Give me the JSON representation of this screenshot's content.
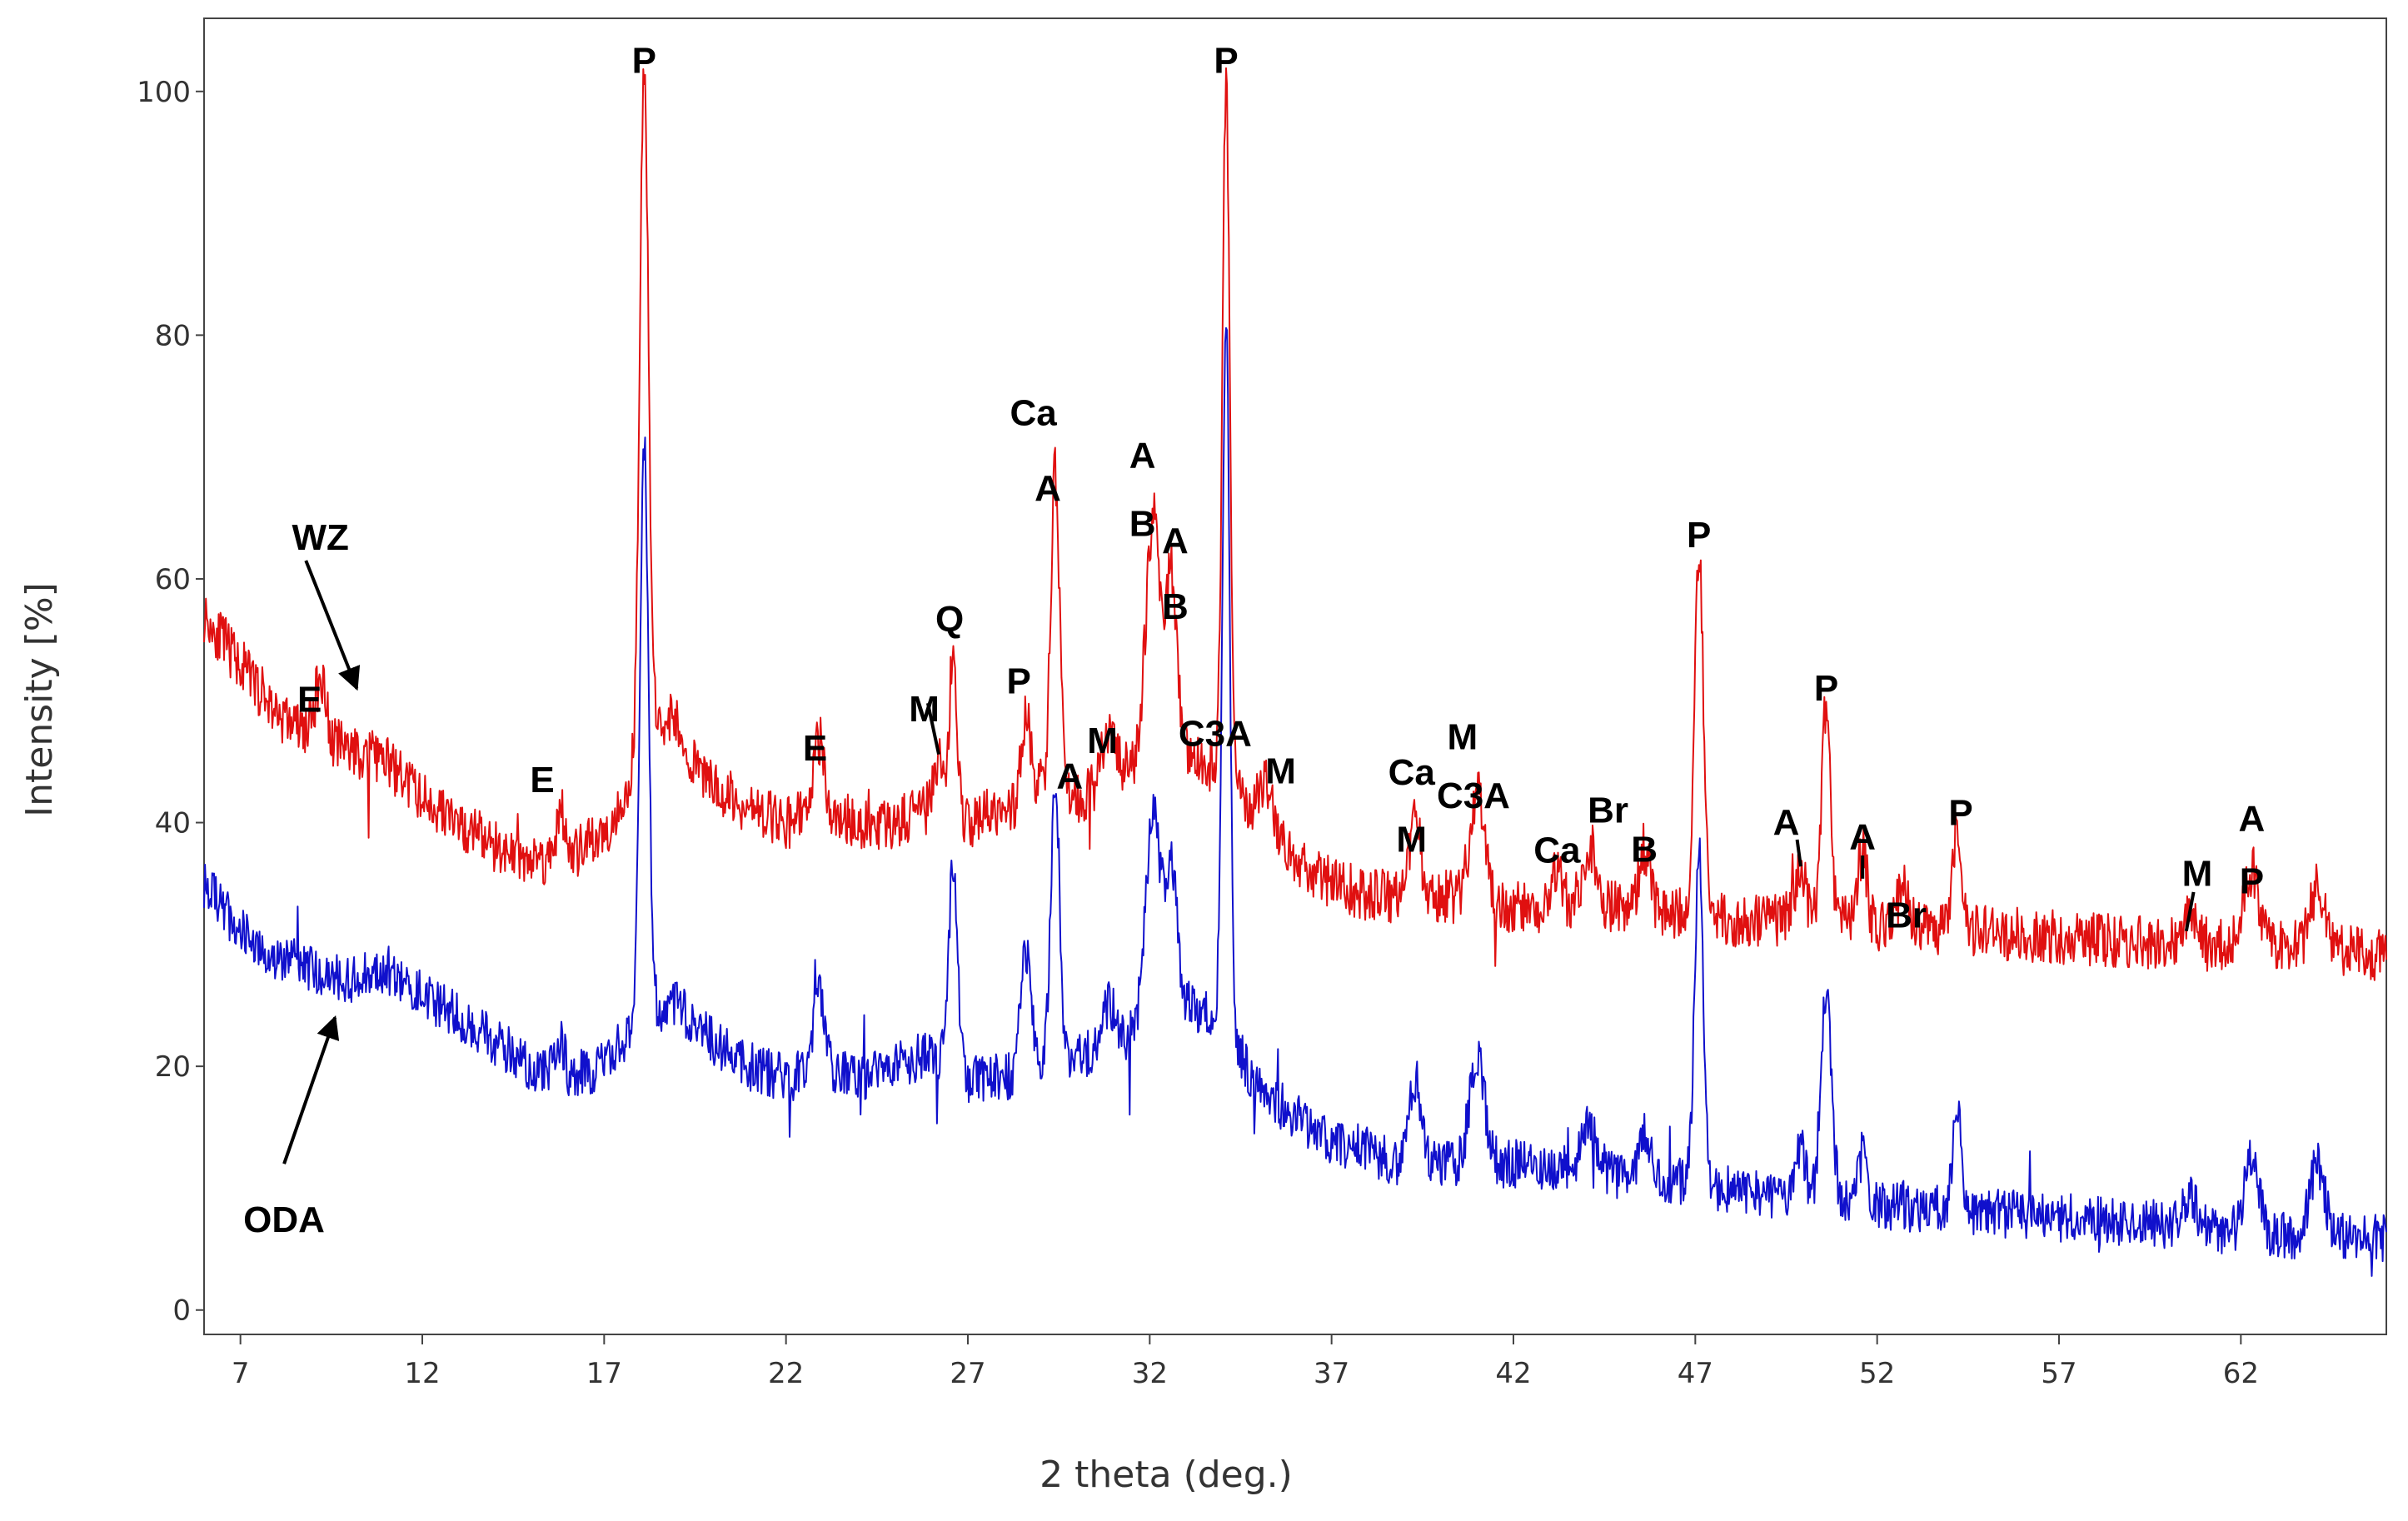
{
  "chart_data": {
    "type": "line",
    "title": "",
    "xlabel": "2 theta (deg.)",
    "ylabel": "Intensity [%]",
    "xlim": [
      6,
      66
    ],
    "ylim": [
      -2,
      106
    ],
    "xticks": [
      7,
      12,
      17,
      22,
      27,
      32,
      37,
      42,
      47,
      52,
      57,
      62
    ],
    "yticks": [
      0,
      20,
      40,
      60,
      80,
      100
    ],
    "grid": false,
    "series": [
      {
        "name": "WZ",
        "color": "#e01010",
        "baseline": [
          [
            6,
            57
          ],
          [
            7,
            53
          ],
          [
            8,
            49
          ],
          [
            9,
            47
          ],
          [
            10,
            46
          ],
          [
            11,
            45
          ],
          [
            12,
            42
          ],
          [
            13,
            40
          ],
          [
            14,
            38
          ],
          [
            15,
            37
          ],
          [
            16,
            37
          ],
          [
            17,
            39
          ],
          [
            18,
            45
          ],
          [
            19,
            46
          ],
          [
            20,
            43
          ],
          [
            21,
            41
          ],
          [
            22,
            40
          ],
          [
            23,
            41
          ],
          [
            24,
            40
          ],
          [
            25,
            40
          ],
          [
            26,
            41
          ],
          [
            27,
            40
          ],
          [
            28,
            41
          ],
          [
            29,
            43
          ],
          [
            30,
            42
          ],
          [
            31,
            43
          ],
          [
            32,
            46
          ],
          [
            33,
            46
          ],
          [
            34,
            44
          ],
          [
            35,
            40
          ],
          [
            36,
            37
          ],
          [
            37,
            35
          ],
          [
            38,
            34
          ],
          [
            39,
            34
          ],
          [
            40,
            34
          ],
          [
            42,
            33
          ],
          [
            45,
            33
          ],
          [
            48,
            32
          ],
          [
            50,
            32
          ],
          [
            55,
            31
          ],
          [
            60,
            30
          ],
          [
            63,
            30
          ],
          [
            66,
            29
          ]
        ],
        "peaks": [
          [
            9.2,
            5,
            0.15
          ],
          [
            15.8,
            4,
            0.12
          ],
          [
            18.1,
            57,
            0.12
          ],
          [
            18.7,
            3,
            0.3
          ],
          [
            22.9,
            6,
            0.15
          ],
          [
            26.2,
            4,
            0.15
          ],
          [
            26.6,
            14,
            0.1
          ],
          [
            28.6,
            7,
            0.12
          ],
          [
            29.4,
            26,
            0.12
          ],
          [
            30.9,
            5,
            0.2
          ],
          [
            32.1,
            19,
            0.2
          ],
          [
            32.6,
            14,
            0.15
          ],
          [
            34.1,
            57,
            0.1
          ],
          [
            35.2,
            4,
            0.2
          ],
          [
            39.3,
            6,
            0.15
          ],
          [
            41,
            9,
            0.2
          ],
          [
            43.2,
            3,
            0.15
          ],
          [
            44.1,
            5,
            0.2
          ],
          [
            45.6,
            5,
            0.15
          ],
          [
            47.1,
            30,
            0.12
          ],
          [
            49.9,
            4,
            0.15
          ],
          [
            50.6,
            18,
            0.12
          ],
          [
            51.6,
            6,
            0.12
          ],
          [
            52.7,
            3,
            0.15
          ],
          [
            54.2,
            8,
            0.12
          ],
          [
            60.6,
            3,
            0.15
          ],
          [
            62.3,
            6,
            0.2
          ],
          [
            64.1,
            5,
            0.2
          ]
        ],
        "noise": 2.2,
        "seed": 11
      },
      {
        "name": "ODA",
        "color": "#1010cc",
        "baseline": [
          [
            6,
            35
          ],
          [
            7,
            31
          ],
          [
            8,
            29
          ],
          [
            9,
            28
          ],
          [
            10,
            27
          ],
          [
            11,
            28
          ],
          [
            12,
            26
          ],
          [
            13,
            24
          ],
          [
            14,
            22
          ],
          [
            15,
            20
          ],
          [
            16,
            19
          ],
          [
            17,
            20
          ],
          [
            18,
            24
          ],
          [
            19,
            25
          ],
          [
            20,
            22
          ],
          [
            21,
            20
          ],
          [
            22,
            19
          ],
          [
            23,
            20
          ],
          [
            24,
            19
          ],
          [
            25,
            20
          ],
          [
            26,
            21
          ],
          [
            27,
            19
          ],
          [
            28,
            19
          ],
          [
            29,
            20
          ],
          [
            30,
            21
          ],
          [
            31,
            21
          ],
          [
            32,
            24
          ],
          [
            33,
            25
          ],
          [
            34,
            24
          ],
          [
            35,
            18
          ],
          [
            36,
            16
          ],
          [
            37,
            14
          ],
          [
            38,
            13
          ],
          [
            39,
            12
          ],
          [
            40,
            12
          ],
          [
            42,
            12
          ],
          [
            45,
            11
          ],
          [
            48,
            10
          ],
          [
            50,
            9
          ],
          [
            55,
            8
          ],
          [
            60,
            7
          ],
          [
            63,
            6
          ],
          [
            66,
            6
          ]
        ],
        "peaks": [
          [
            15.8,
            3,
            0.12
          ],
          [
            18.1,
            47,
            0.12
          ],
          [
            22.9,
            6,
            0.15
          ],
          [
            26.6,
            17,
            0.12
          ],
          [
            28.6,
            10,
            0.15
          ],
          [
            29.4,
            23,
            0.12
          ],
          [
            30.9,
            4,
            0.2
          ],
          [
            32.1,
            17,
            0.2
          ],
          [
            32.6,
            12,
            0.15
          ],
          [
            34.1,
            57,
            0.1
          ],
          [
            39.3,
            7,
            0.15
          ],
          [
            41,
            9,
            0.2
          ],
          [
            44.1,
            4,
            0.2
          ],
          [
            45.6,
            4,
            0.15
          ],
          [
            47.1,
            27,
            0.12
          ],
          [
            49.9,
            4,
            0.15
          ],
          [
            50.6,
            17,
            0.15
          ],
          [
            51.6,
            4,
            0.12
          ],
          [
            54.2,
            8,
            0.12
          ],
          [
            60.6,
            3,
            0.15
          ],
          [
            62.3,
            6,
            0.2
          ],
          [
            64.1,
            6,
            0.2
          ]
        ],
        "noise": 2.0,
        "seed": 29
      }
    ],
    "series_labels": [
      {
        "text": "WZ",
        "x": 9.2,
        "y": 63.5,
        "arrow_to": [
          10.2,
          51
        ],
        "arrow_from": [
          8.8,
          61.5
        ]
      },
      {
        "text": "ODA",
        "x": 8.2,
        "y": 7.5,
        "arrow_to": [
          9.6,
          24
        ],
        "arrow_from": [
          8.2,
          12
        ]
      }
    ],
    "annotations": [
      {
        "text": "P",
        "x": 18.1,
        "y": 102.6
      },
      {
        "text": "P",
        "x": 34.1,
        "y": 102.6
      },
      {
        "text": "E",
        "x": 8.9,
        "y": 50.2
      },
      {
        "text": "E",
        "x": 15.3,
        "y": 43.6
      },
      {
        "text": "E",
        "x": 22.8,
        "y": 46.2
      },
      {
        "text": "M",
        "x": 25.8,
        "y": 49.4
      },
      {
        "text": "Q",
        "x": 26.5,
        "y": 56.8
      },
      {
        "text": "P",
        "x": 28.4,
        "y": 51.7
      },
      {
        "text": "Ca",
        "x": 28.8,
        "y": 73.7
      },
      {
        "text": "A",
        "x": 29.2,
        "y": 67.5
      },
      {
        "text": "A",
        "x": 29.8,
        "y": 43.9
      },
      {
        "text": "M",
        "x": 30.7,
        "y": 46.8
      },
      {
        "text": "A",
        "x": 31.8,
        "y": 70.2
      },
      {
        "text": "B",
        "x": 31.8,
        "y": 64.6
      },
      {
        "text": "A",
        "x": 32.7,
        "y": 63.2
      },
      {
        "text": "B",
        "x": 32.7,
        "y": 57.8
      },
      {
        "text": "C3A",
        "x": 33.8,
        "y": 47.4
      },
      {
        "text": "M",
        "x": 35.6,
        "y": 44.3
      },
      {
        "text": "Ca",
        "x": 39.2,
        "y": 44.2
      },
      {
        "text": "M",
        "x": 39.2,
        "y": 38.7
      },
      {
        "text": "M",
        "x": 40.6,
        "y": 47.1
      },
      {
        "text": "C3A",
        "x": 40.9,
        "y": 42.3
      },
      {
        "text": "Br",
        "x": 44.6,
        "y": 41.1
      },
      {
        "text": "Ca",
        "x": 43.2,
        "y": 37.8
      },
      {
        "text": "B",
        "x": 45.6,
        "y": 37.9
      },
      {
        "text": "P",
        "x": 47.1,
        "y": 63.7
      },
      {
        "text": "P",
        "x": 50.6,
        "y": 51.1
      },
      {
        "text": "A",
        "x": 49.5,
        "y": 40.1
      },
      {
        "text": "A",
        "x": 51.6,
        "y": 38.9
      },
      {
        "text": "Br",
        "x": 52.8,
        "y": 32.5
      },
      {
        "text": "P",
        "x": 54.3,
        "y": 40.9
      },
      {
        "text": "M",
        "x": 60.8,
        "y": 35.9
      },
      {
        "text": "A",
        "x": 62.3,
        "y": 40.4
      },
      {
        "text": "P",
        "x": 62.3,
        "y": 35.3
      }
    ],
    "leader_lines": [
      {
        "from": [
          25.9,
          49.8
        ],
        "to": [
          26.2,
          45.6
        ]
      },
      {
        "from": [
          49.8,
          38.6
        ],
        "to": [
          49.9,
          36.4
        ]
      },
      {
        "from": [
          51.6,
          37.3
        ],
        "to": [
          51.6,
          35.4
        ]
      },
      {
        "from": [
          60.7,
          34.3
        ],
        "to": [
          60.5,
          31.1
        ]
      }
    ]
  }
}
